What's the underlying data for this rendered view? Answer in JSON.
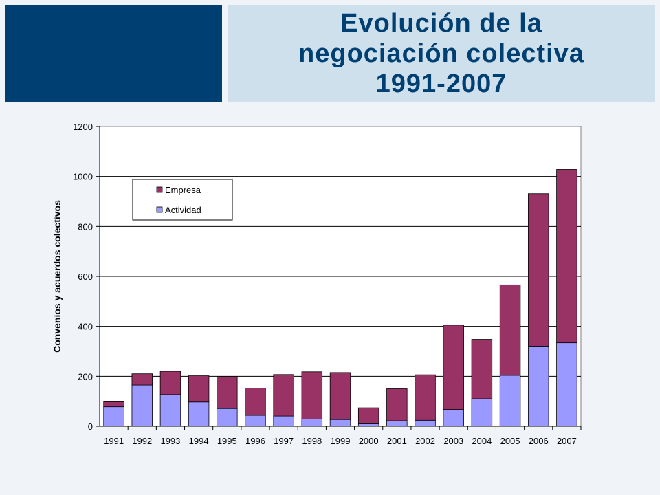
{
  "slide": {
    "title": "Evolución de la\nnegociación colectiva\n1991-2007"
  },
  "colors": {
    "header_block": "#003f72",
    "title_band": "#cfe0ed",
    "empresa": "#993366",
    "actividad": "#9999ff"
  },
  "chart_data": {
    "type": "bar",
    "stacked": true,
    "title": "",
    "xlabel": "",
    "ylabel": "Convenios y acuerdos colectivos",
    "ylim": [
      0,
      1200
    ],
    "yticks": [
      0,
      200,
      400,
      600,
      800,
      1000,
      1200
    ],
    "grid": true,
    "legend_position": "top-left",
    "categories": [
      "1991",
      "1992",
      "1993",
      "1994",
      "1995",
      "1996",
      "1997",
      "1998",
      "1999",
      "2000",
      "2001",
      "2002",
      "2003",
      "2004",
      "2005",
      "2006",
      "2007"
    ],
    "series": [
      {
        "name": "Actividad",
        "color": "#9999ff",
        "values": [
          78,
          165,
          127,
          97,
          71,
          44,
          41,
          29,
          27,
          10,
          22,
          24,
          67,
          110,
          204,
          321,
          334
        ]
      },
      {
        "name": "Empresa",
        "color": "#993366",
        "values": [
          20,
          45,
          93,
          105,
          127,
          109,
          166,
          189,
          188,
          64,
          128,
          182,
          338,
          238,
          362,
          610,
          694
        ]
      }
    ],
    "legend": [
      "Empresa",
      "Actividad"
    ]
  }
}
